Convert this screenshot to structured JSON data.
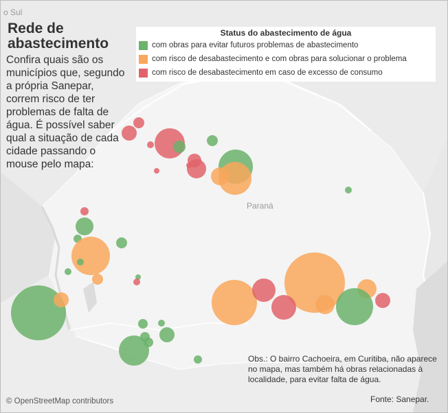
{
  "map": {
    "corner_label": "o Sul",
    "region_label": "Paraná",
    "attribution": "© OpenStreetMap contributors"
  },
  "header": {
    "title": "Rede de abastecimento",
    "description": "Confira quais são os municípios que, segundo a própria Sanepar, correm risco de ter problemas de falta de água. É possível saber qual a situação de cada cidade passando o mouse pelo mapa:"
  },
  "legend": {
    "title": "Status do abastecimento de água",
    "items": [
      {
        "key": "green",
        "label": "com obras para evitar futuros problemas de abastecimento",
        "color": "#6bb26b"
      },
      {
        "key": "orange",
        "label": "com risco de desabastecimento e com obras para solucionar o problema",
        "color": "#f9a75c"
      },
      {
        "key": "red",
        "label": "com risco de desabastecimento em caso de excesso de consumo",
        "color": "#e0636a"
      }
    ]
  },
  "note": "Obs.: O bairro Cachoeira, em Curitiba, não aparece no mapa, mas também há obras relacionadas à localidade, para evitar falta de água.",
  "source": "Fonte: Sanepar.",
  "chart_data": {
    "type": "scatter",
    "series": [
      {
        "name": "com obras para evitar futuros problemas de abastecimento",
        "status": "green"
      },
      {
        "name": "com risco de desabastecimento e com obras para solucionar o problema",
        "status": "orange"
      },
      {
        "name": "com risco de desabastecimento em caso de excesso de consumo",
        "status": "red"
      }
    ]
  }
}
